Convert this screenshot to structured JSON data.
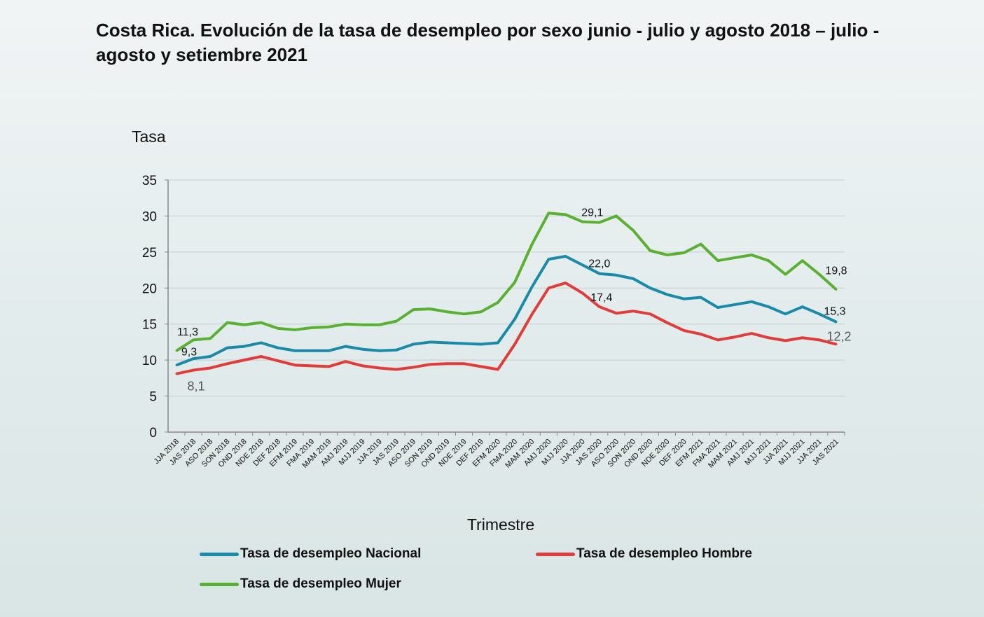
{
  "title": "Costa Rica. Evolución de la tasa de desempleo por sexo junio - julio y agosto 2018 – julio - agosto y setiembre 2021",
  "chart_data": {
    "type": "line",
    "title": "Costa Rica. Evolución de la tasa de desempleo por sexo junio - julio y agosto 2018 – julio - agosto y setiembre 2021",
    "ylabel": "Tasa",
    "xlabel": "Trimestre",
    "ylim": [
      0,
      35
    ],
    "yticks": [
      0,
      5,
      10,
      15,
      20,
      25,
      30,
      35
    ],
    "grid": true,
    "legend_position": "bottom",
    "categories": [
      "JJA 2018",
      "JAS 2018",
      "ASO 2018",
      "SON 2018",
      "OND 2018",
      "NDE 2018",
      "DEF 2018",
      "EFM 2019",
      "FMA 2019",
      "MAM 2019",
      "AMJ 2019",
      "MJJ 2019",
      "JJA 2019",
      "JAS 2019",
      "ASO 2019",
      "SON 2019",
      "OND 2019",
      "NDE 2019",
      "DEF 2019",
      "EFM 2020",
      "FMA 2020",
      "MAM 2020",
      "AMJ 2020",
      "MJJ 2020",
      "JJA 2020",
      "JAS 2020",
      "ASO 2020",
      "SON 2020",
      "OND 2020",
      "NDE 2020",
      "DEF 2020",
      "EFM 2021",
      "FMA 2021",
      "MAM 2021",
      "AMJ 2021",
      "MJJ 2021",
      "JJA 2021",
      "MJJ 2021",
      "JJA 2021",
      "JAS 2021"
    ],
    "series": [
      {
        "name": "Tasa de desempleo Nacional",
        "color": "#1a8aa8",
        "values": [
          9.3,
          10.2,
          10.5,
          11.7,
          11.9,
          12.4,
          11.7,
          11.3,
          11.3,
          11.3,
          11.9,
          11.5,
          11.3,
          11.4,
          12.2,
          12.5,
          12.4,
          12.3,
          12.2,
          12.4,
          15.7,
          20.1,
          24.0,
          24.4,
          23.2,
          22.0,
          21.8,
          21.3,
          20.0,
          19.1,
          18.5,
          18.7,
          17.3,
          17.7,
          18.1,
          17.4,
          16.4,
          17.4,
          16.4,
          15.3
        ],
        "labels": [
          {
            "index": 0,
            "text": "9,3"
          },
          {
            "index": 25,
            "text": "22,0"
          },
          {
            "index": 39,
            "text": "15,3"
          }
        ]
      },
      {
        "name": "Tasa de desempleo Hombre",
        "color": "#e03c3c",
        "values": [
          8.1,
          8.6,
          8.9,
          9.5,
          10.0,
          10.5,
          9.9,
          9.3,
          9.2,
          9.1,
          9.8,
          9.2,
          8.9,
          8.7,
          9.0,
          9.4,
          9.5,
          9.5,
          9.1,
          8.7,
          12.2,
          16.3,
          20.0,
          20.7,
          19.3,
          17.4,
          16.5,
          16.8,
          16.4,
          15.2,
          14.1,
          13.6,
          12.8,
          13.2,
          13.7,
          13.1,
          12.7,
          13.1,
          12.8,
          12.2
        ],
        "labels": [
          {
            "index": 0,
            "text": "8,1"
          },
          {
            "index": 25,
            "text": "17,4"
          },
          {
            "index": 39,
            "text": "12,2"
          }
        ]
      },
      {
        "name": "Tasa de desempleo Mujer",
        "color": "#5ab033",
        "values": [
          11.3,
          12.8,
          13.0,
          15.2,
          14.9,
          15.2,
          14.4,
          14.2,
          14.5,
          14.6,
          15.0,
          14.9,
          14.9,
          15.4,
          17.0,
          17.1,
          16.7,
          16.4,
          16.7,
          18.0,
          20.8,
          26.0,
          30.4,
          30.2,
          29.2,
          29.1,
          30.0,
          28.0,
          25.2,
          24.6,
          24.9,
          26.1,
          23.8,
          24.2,
          24.6,
          23.8,
          21.9,
          23.8,
          21.9,
          19.8
        ],
        "labels": [
          {
            "index": 0,
            "text": "11,3"
          },
          {
            "index": 25,
            "text": "29,1"
          },
          {
            "index": 39,
            "text": "19,8"
          }
        ]
      }
    ]
  }
}
